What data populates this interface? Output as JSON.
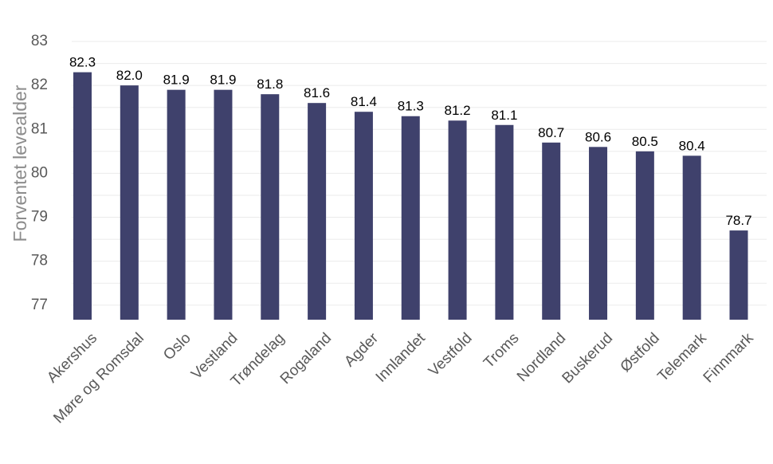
{
  "chart_data": {
    "type": "bar",
    "title": "",
    "xlabel": "",
    "ylabel": "Forventet levealder",
    "ylim": [
      76.67,
      83
    ],
    "yticks": [
      77,
      78,
      79,
      80,
      81,
      82,
      83
    ],
    "grid": true,
    "legend": "none",
    "bar_color": "#3f416c",
    "categories": [
      "Akershus",
      "Møre og Romsdal",
      "Oslo",
      "Vestland",
      "Trøndelag",
      "Rogaland",
      "Agder",
      "Innlandet",
      "Vestfold",
      "Troms",
      "Nordland",
      "Buskerud",
      "Østfold",
      "Telemark",
      "Finnmark"
    ],
    "values": [
      82.3,
      82.0,
      81.9,
      81.9,
      81.8,
      81.6,
      81.4,
      81.3,
      81.2,
      81.1,
      80.7,
      80.6,
      80.5,
      80.4,
      78.7
    ],
    "data_labels": [
      "82.3",
      "82.0",
      "81.9",
      "81.9",
      "81.8",
      "81.6",
      "81.4",
      "81.3",
      "81.2",
      "81.1",
      "80.7",
      "80.6",
      "80.5",
      "80.4",
      "78.7"
    ]
  }
}
